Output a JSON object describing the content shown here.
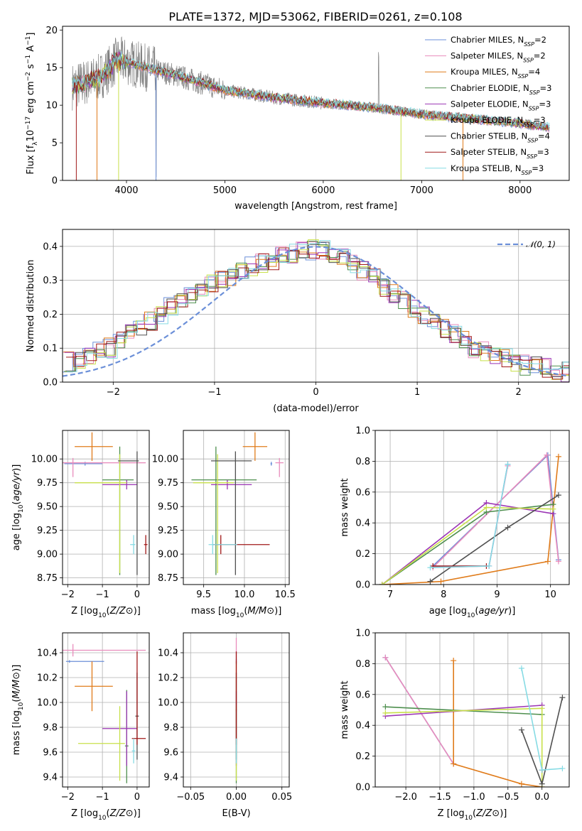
{
  "figure_title": "PLATE=1372, MJD=53062, FIBERID=0261, z=0.108",
  "colors": {
    "Chabrier MILES": "#6b8fd8",
    "Salpeter MILES": "#e98cbc",
    "Kroupa MILES": "#e07b1a",
    "Chabrier ELODIE": "#4e8f4e",
    "Salpeter ELODIE": "#9b35b5",
    "Kroupa ELODIE": "#c8e04a",
    "Chabrier STELIB": "#505050",
    "Salpeter STELIB": "#a01818",
    "Kroupa STELIB": "#86dbe4",
    "data": "#808080"
  },
  "chart_data": [
    {
      "type": "line",
      "title": "PLATE=1372, MJD=53062, FIBERID=0261, z=0.108",
      "xlabel": "wavelength [Angstrom, rest frame]",
      "ylabel_parts": [
        "Flux [f",
        "λ",
        "10",
        "−17",
        " erg cm",
        "−2",
        " s",
        "−1",
        " A",
        "−1",
        "]"
      ],
      "xlim": [
        3350,
        8500
      ],
      "ylim": [
        0,
        20.5
      ],
      "xticks": [
        4000,
        5000,
        6000,
        7000,
        8000
      ],
      "yticks": [
        0,
        5,
        10,
        15,
        20
      ],
      "grid": false,
      "legend_position": "top-right",
      "legend": [
        {
          "model": "Chabrier MILES",
          "n": "2"
        },
        {
          "model": "Salpeter MILES",
          "n": "2"
        },
        {
          "model": "Kroupa MILES",
          "n": "4"
        },
        {
          "model": "Chabrier ELODIE",
          "n": "3"
        },
        {
          "model": "Salpeter ELODIE",
          "n": "3"
        },
        {
          "model": "Kroupa ELODIE",
          "n": "3"
        },
        {
          "model": "Chabrier STELIB",
          "n": "4"
        },
        {
          "model": "Salpeter STELIB",
          "n": "3"
        },
        {
          "model": "Kroupa STELIB",
          "n": "3"
        }
      ],
      "legend_sub": "SSP",
      "continuum": {
        "x": [
          3450,
          3700,
          3800,
          3900,
          4000,
          4200,
          4500,
          5000,
          5500,
          6000,
          6500,
          7000,
          7500,
          8000,
          8300
        ],
        "y": [
          12.5,
          13.5,
          14.5,
          16.0,
          15.8,
          15.0,
          14.0,
          12.0,
          11.0,
          10.3,
          9.7,
          8.8,
          8.2,
          7.6,
          7.0
        ]
      }
    },
    {
      "type": "histogram",
      "xlabel": "(data-model)/error",
      "ylabel": "Normed distribution",
      "xlim": [
        -2.5,
        2.5
      ],
      "ylim": [
        0,
        0.45
      ],
      "xticks": [
        -2,
        -1,
        0,
        1,
        2
      ],
      "yticks": [
        0.0,
        0.1,
        0.2,
        0.3,
        0.4
      ],
      "grid": true,
      "legend_position": "top-right",
      "reference_curve": {
        "label": "𝒩(0, 1)",
        "mean": 0,
        "sigma": 1
      },
      "bin_edges_start": -2.5,
      "bin_width": 0.1,
      "envelope": [
        0.06,
        0.07,
        0.08,
        0.09,
        0.1,
        0.12,
        0.14,
        0.16,
        0.18,
        0.2,
        0.22,
        0.24,
        0.26,
        0.28,
        0.29,
        0.3,
        0.31,
        0.33,
        0.34,
        0.35,
        0.36,
        0.37,
        0.38,
        0.39,
        0.39,
        0.39,
        0.38,
        0.37,
        0.35,
        0.33,
        0.31,
        0.28,
        0.26,
        0.24,
        0.22,
        0.2,
        0.18,
        0.16,
        0.14,
        0.12,
        0.1,
        0.09,
        0.08,
        0.07,
        0.06,
        0.05,
        0.045,
        0.04,
        0.035,
        0.03
      ]
    },
    {
      "type": "errorbar",
      "xlabel": "Z [log10(Z/Z⊙)]",
      "ylabel": "age  [log10(age/yr)]",
      "xlim": [
        -2.15,
        0.35
      ],
      "ylim": [
        8.68,
        10.3
      ],
      "xticks": [
        -2,
        -1,
        0
      ],
      "yticks": [
        8.75,
        9.0,
        9.25,
        9.5,
        9.75,
        10.0
      ],
      "grid": true,
      "points": [
        {
          "model": "Chabrier MILES",
          "x": -1.5,
          "y": 9.95,
          "xerr": [
            0.6,
            0.5
          ],
          "yerr": [
            0.02,
            0.02
          ]
        },
        {
          "model": "Salpeter MILES",
          "x": -1.85,
          "y": 9.96,
          "xerr": [
            0.3,
            2.1
          ],
          "yerr": [
            0.15,
            0.05
          ]
        },
        {
          "model": "Kroupa MILES",
          "x": -1.3,
          "y": 10.13,
          "xerr": [
            0.5,
            0.6
          ],
          "yerr": [
            0.15,
            0.15
          ]
        },
        {
          "model": "Chabrier ELODIE",
          "x": -0.5,
          "y": 9.78,
          "xerr": [
            0.5,
            0.4
          ],
          "yerr": [
            1.0,
            0.35
          ]
        },
        {
          "model": "Salpeter ELODIE",
          "x": -0.3,
          "y": 9.73,
          "xerr": [
            0.7,
            0.3
          ],
          "yerr": [
            0.05,
            0.05
          ]
        },
        {
          "model": "Kroupa ELODIE",
          "x": -0.5,
          "y": 9.75,
          "xerr": [
            1.3,
            0.2
          ],
          "yerr": [
            0.95,
            0.3
          ]
        },
        {
          "model": "Chabrier STELIB",
          "x": 0.0,
          "y": 9.98,
          "xerr": [
            0.55,
            0.05
          ],
          "yerr": [
            1.2,
            0.1
          ]
        },
        {
          "model": "Salpeter STELIB",
          "x": 0.25,
          "y": 9.1,
          "xerr": [
            0.05,
            0.05
          ],
          "yerr": [
            0.1,
            0.1
          ]
        },
        {
          "model": "Kroupa STELIB",
          "x": -0.1,
          "y": 9.1,
          "xerr": [
            0.1,
            0.05
          ],
          "yerr": [
            0.1,
            0.1
          ]
        }
      ]
    },
    {
      "type": "errorbar",
      "xlabel": "mass [log10(M/M⊙)]",
      "ylabel": "",
      "xlim": [
        9.25,
        10.55
      ],
      "ylim": [
        8.68,
        10.3
      ],
      "xticks": [
        9.5,
        10.0,
        10.5
      ],
      "yticks": [
        8.75,
        9.0,
        9.25,
        9.5,
        9.75,
        10.0
      ],
      "grid": true,
      "points": [
        {
          "model": "Chabrier MILES",
          "x": 10.33,
          "y": 9.95,
          "xerr": [
            0.01,
            0.01
          ],
          "yerr": [
            0.02,
            0.02
          ]
        },
        {
          "model": "Salpeter MILES",
          "x": 10.43,
          "y": 9.96,
          "xerr": [
            0.05,
            0.05
          ],
          "yerr": [
            0.15,
            0.05
          ]
        },
        {
          "model": "Kroupa MILES",
          "x": 10.13,
          "y": 10.13,
          "xerr": [
            0.15,
            0.15
          ],
          "yerr": [
            0.15,
            0.15
          ]
        },
        {
          "model": "Chabrier ELODIE",
          "x": 9.65,
          "y": 9.78,
          "xerr": [
            0.3,
            0.5
          ],
          "yerr": [
            1.0,
            0.35
          ]
        },
        {
          "model": "Salpeter ELODIE",
          "x": 9.79,
          "y": 9.73,
          "xerr": [
            0.2,
            0.3
          ],
          "yerr": [
            0.05,
            0.05
          ]
        },
        {
          "model": "Kroupa ELODIE",
          "x": 9.67,
          "y": 9.75,
          "xerr": [
            0.3,
            0.2
          ],
          "yerr": [
            0.95,
            0.3
          ]
        },
        {
          "model": "Chabrier STELIB",
          "x": 9.89,
          "y": 9.98,
          "xerr": [
            0.3,
            0.2
          ],
          "yerr": [
            1.2,
            0.1
          ]
        },
        {
          "model": "Salpeter STELIB",
          "x": 9.71,
          "y": 9.1,
          "xerr": [
            0.1,
            0.6
          ],
          "yerr": [
            0.1,
            0.1
          ]
        },
        {
          "model": "Kroupa STELIB",
          "x": 9.61,
          "y": 9.1,
          "xerr": [
            0.05,
            0.3
          ],
          "yerr": [
            0.1,
            0.1
          ]
        }
      ]
    },
    {
      "type": "line",
      "xlabel": "age  [log10(age/yr)]",
      "ylabel": "mass weight",
      "xlim": [
        6.72,
        10.35
      ],
      "ylim": [
        0,
        1.0
      ],
      "xticks": [
        7,
        8,
        9,
        10
      ],
      "yticks": [
        0.0,
        0.2,
        0.4,
        0.6,
        0.8,
        1.0
      ],
      "grid": true,
      "series": [
        {
          "model": "Chabrier MILES",
          "x": [
            9.2,
            8.85,
            7.8,
            9.95,
            10.15
          ],
          "y": [
            0.78,
            0.12,
            0.12,
            0.84,
            0.16
          ]
        },
        {
          "model": "Salpeter MILES",
          "x": [
            9.2,
            8.85,
            7.8,
            9.93,
            10.15
          ],
          "y": [
            0.77,
            0.12,
            0.11,
            0.84,
            0.15
          ]
        },
        {
          "model": "Kroupa MILES",
          "x": [
            6.85,
            7.95,
            9.95,
            10.15
          ],
          "y": [
            0.0,
            0.02,
            0.15,
            0.83
          ]
        },
        {
          "model": "Chabrier ELODIE",
          "x": [
            6.85,
            8.8,
            10.05
          ],
          "y": [
            0.0,
            0.47,
            0.52
          ]
        },
        {
          "model": "Salpeter ELODIE",
          "x": [
            6.85,
            8.8,
            10.05
          ],
          "y": [
            0.0,
            0.53,
            0.46
          ]
        },
        {
          "model": "Kroupa ELODIE",
          "x": [
            6.85,
            8.8,
            10.05
          ],
          "y": [
            0.0,
            0.5,
            0.49
          ]
        },
        {
          "model": "Chabrier STELIB",
          "x": [
            7.75,
            9.2,
            10.15
          ],
          "y": [
            0.02,
            0.37,
            0.58
          ]
        },
        {
          "model": "Salpeter STELIB",
          "x": [
            7.8,
            8.8
          ],
          "y": [
            0.12,
            0.12
          ]
        },
        {
          "model": "Kroupa STELIB",
          "x": [
            7.75,
            8.85,
            9.2
          ],
          "y": [
            0.11,
            0.12,
            0.78
          ]
        }
      ]
    },
    {
      "type": "errorbar",
      "xlabel": "Z [log10(Z/Z⊙)]",
      "ylabel": "mass [log10(M/M⊙)]",
      "xlim": [
        -2.15,
        0.35
      ],
      "ylim": [
        9.32,
        10.56
      ],
      "xticks": [
        -2,
        -1,
        0
      ],
      "yticks": [
        9.4,
        9.6,
        9.8,
        10.0,
        10.2,
        10.4
      ],
      "grid": true,
      "points": [
        {
          "model": "Chabrier MILES",
          "x": -1.95,
          "y": 10.33,
          "xerr": [
            0.1,
            1.0
          ],
          "yerr": [
            0.01,
            0.01
          ]
        },
        {
          "model": "Salpeter MILES",
          "x": -1.85,
          "y": 10.42,
          "xerr": [
            0.3,
            2.1
          ],
          "yerr": [
            0.05,
            0.05
          ]
        },
        {
          "model": "Kroupa MILES",
          "x": -1.3,
          "y": 10.13,
          "xerr": [
            0.5,
            0.6
          ],
          "yerr": [
            0.2,
            0.2
          ]
        },
        {
          "model": "Chabrier ELODIE",
          "x": -0.3,
          "y": 9.65,
          "xerr": [
            0.05,
            0.05
          ],
          "yerr": [
            0.3,
            0.45
          ]
        },
        {
          "model": "Salpeter ELODIE",
          "x": -0.3,
          "y": 9.79,
          "xerr": [
            0.7,
            0.3
          ],
          "yerr": [
            0.3,
            0.3
          ]
        },
        {
          "model": "Kroupa ELODIE",
          "x": -0.5,
          "y": 9.67,
          "xerr": [
            1.2,
            0.15
          ],
          "yerr": [
            0.3,
            0.3
          ]
        },
        {
          "model": "Chabrier STELIB",
          "x": 0.0,
          "y": 9.89,
          "xerr": [
            0.05,
            0.05
          ],
          "yerr": [
            0.35,
            0.35
          ]
        },
        {
          "model": "Salpeter STELIB",
          "x": 0.0,
          "y": 9.71,
          "xerr": [
            0.15,
            0.25
          ],
          "yerr": [
            0.05,
            0.7
          ]
        },
        {
          "model": "Kroupa STELIB",
          "x": -0.1,
          "y": 9.61,
          "xerr": [
            0.05,
            0.05
          ],
          "yerr": [
            0.1,
            0.1
          ]
        }
      ]
    },
    {
      "type": "errorbar",
      "xlabel": "E(B-V)",
      "ylabel": "",
      "xlim": [
        -0.058,
        0.058
      ],
      "ylim": [
        9.32,
        10.56
      ],
      "xticks": [
        -0.05,
        0.0,
        0.05
      ],
      "yticks": [
        9.4,
        9.6,
        9.8,
        10.0,
        10.2,
        10.4
      ],
      "grid": true,
      "points": [
        {
          "model": "Chabrier MILES",
          "x": 0.0,
          "y": 10.33,
          "xerr": [
            0.0,
            0.0
          ],
          "yerr": [
            0.02,
            0.02
          ]
        },
        {
          "model": "Salpeter MILES",
          "x": 0.0,
          "y": 10.42,
          "xerr": [
            0.0,
            0.0
          ],
          "yerr": [
            0.1,
            0.1
          ]
        },
        {
          "model": "Kroupa MILES",
          "x": 0.0,
          "y": 10.13,
          "xerr": [
            0.0,
            0.0
          ],
          "yerr": [
            0.2,
            0.2
          ]
        },
        {
          "model": "Chabrier ELODIE",
          "x": 0.0,
          "y": 9.65,
          "xerr": [
            0.0,
            0.0
          ],
          "yerr": [
            0.3,
            0.3
          ]
        },
        {
          "model": "Salpeter ELODIE",
          "x": 0.0,
          "y": 9.79,
          "xerr": [
            0.0,
            0.0
          ],
          "yerr": [
            0.3,
            0.3
          ]
        },
        {
          "model": "Kroupa ELODIE",
          "x": 0.0,
          "y": 9.67,
          "xerr": [
            0.0,
            0.0
          ],
          "yerr": [
            0.3,
            0.3
          ]
        },
        {
          "model": "Chabrier STELIB",
          "x": 0.0,
          "y": 9.89,
          "xerr": [
            0.0,
            0.0
          ],
          "yerr": [
            0.35,
            0.35
          ]
        },
        {
          "model": "Salpeter STELIB",
          "x": 0.0,
          "y": 9.71,
          "xerr": [
            0.0,
            0.0
          ],
          "yerr": [
            0.05,
            0.7
          ]
        },
        {
          "model": "Kroupa STELIB",
          "x": 0.0,
          "y": 9.61,
          "xerr": [
            0.0,
            0.0
          ],
          "yerr": [
            0.1,
            0.1
          ]
        }
      ]
    },
    {
      "type": "line",
      "xlabel": "Z [log10(Z/Z⊙)]",
      "ylabel": "mass weight",
      "xlim": [
        -2.45,
        0.4
      ],
      "ylim": [
        0,
        1.0
      ],
      "xticks": [
        -2.0,
        -1.5,
        -1.0,
        -0.5,
        0.0
      ],
      "yticks": [
        0.0,
        0.2,
        0.4,
        0.6,
        0.8,
        1.0
      ],
      "grid": true,
      "series": [
        {
          "model": "Chabrier MILES",
          "x": [
            -2.3,
            -1.3
          ],
          "y": [
            0.84,
            0.15
          ]
        },
        {
          "model": "Salpeter MILES",
          "x": [
            -2.3,
            -1.3
          ],
          "y": [
            0.84,
            0.15
          ]
        },
        {
          "model": "Kroupa MILES",
          "x": [
            -1.3,
            -1.3,
            -0.3,
            0.0
          ],
          "y": [
            0.82,
            0.15,
            0.02,
            0.0
          ]
        },
        {
          "model": "Chabrier ELODIE",
          "x": [
            -2.3,
            0.0
          ],
          "y": [
            0.52,
            0.47
          ]
        },
        {
          "model": "Salpeter ELODIE",
          "x": [
            -2.3,
            0.0
          ],
          "y": [
            0.46,
            0.53
          ]
        },
        {
          "model": "Kroupa ELODIE",
          "x": [
            -2.3,
            0.0,
            0.0
          ],
          "y": [
            0.48,
            0.51,
            0.0
          ]
        },
        {
          "model": "Chabrier STELIB",
          "x": [
            -0.3,
            0.0,
            0.3
          ],
          "y": [
            0.37,
            0.02,
            0.58
          ]
        },
        {
          "model": "Salpeter STELIB",
          "x": [
            0.0
          ],
          "y": [
            0.11
          ]
        },
        {
          "model": "Kroupa STELIB",
          "x": [
            -0.3,
            0.0,
            0.3
          ],
          "y": [
            0.77,
            0.11,
            0.12
          ]
        }
      ]
    }
  ]
}
